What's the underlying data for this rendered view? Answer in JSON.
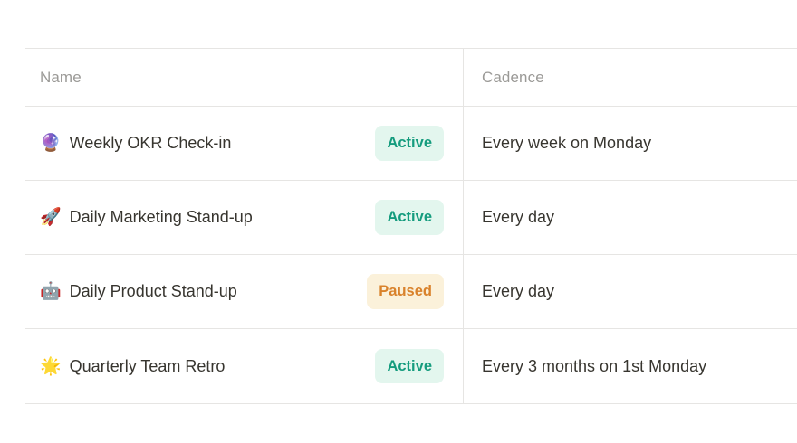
{
  "table": {
    "columns": [
      {
        "label": "Name"
      },
      {
        "label": "Cadence"
      }
    ],
    "rows": [
      {
        "emoji": "🔮",
        "emoji_name": "crystal-ball",
        "name": "Weekly OKR Check-in",
        "status": "Active",
        "status_type": "active",
        "cadence": "Every week on Monday"
      },
      {
        "emoji": "🚀",
        "emoji_name": "rocket",
        "name": "Daily Marketing Stand-up",
        "status": "Active",
        "status_type": "active",
        "cadence": "Every day"
      },
      {
        "emoji": "🤖",
        "emoji_name": "robot",
        "name": "Daily Product Stand-up",
        "status": "Paused",
        "status_type": "paused",
        "cadence": "Every day"
      },
      {
        "emoji": "🌟",
        "emoji_name": "glowing-star",
        "name": "Quarterly Team Retro",
        "status": "Active",
        "status_type": "active",
        "cadence": "Every 3 months on 1st Monday"
      }
    ],
    "colors": {
      "active_bg": "#E3F6EE",
      "active_text": "#159C7E",
      "paused_bg": "#FBF1DA",
      "paused_text": "#D9822B",
      "border": "#E6E5E3",
      "header_text": "#9B9A97",
      "body_text": "#37352F",
      "page_bg": "#FFFFFF"
    }
  }
}
